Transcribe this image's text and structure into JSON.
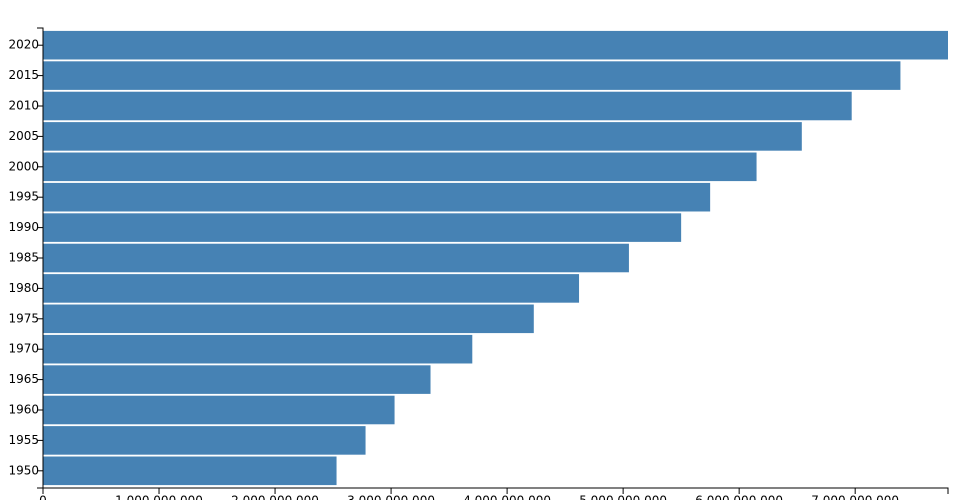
{
  "chart_data": {
    "type": "bar",
    "orientation": "horizontal",
    "categories": [
      "2020",
      "2015",
      "2010",
      "2005",
      "2000",
      "1995",
      "1990",
      "1985",
      "1980",
      "1975",
      "1970",
      "1965",
      "1960",
      "1955",
      "1950"
    ],
    "values": [
      7800000000,
      7390000000,
      6970000000,
      6540000000,
      6150000000,
      5750000000,
      5500000000,
      5050000000,
      4620000000,
      4230000000,
      3700000000,
      3340000000,
      3030000000,
      2780000000,
      2530000000
    ],
    "color": "#4682b4",
    "xlim": [
      0,
      7800000000
    ],
    "xticks": [
      0,
      {
        "value": 1000000000,
        "label": "1,000,000,000"
      },
      {
        "value": 2000000000,
        "label": "2,000,000,000"
      },
      {
        "value": 3000000000,
        "label": "3,000,000,000"
      },
      {
        "value": 4000000000,
        "label": "4,000,000,000"
      },
      {
        "value": 5000000000,
        "label": "5,000,000,000"
      },
      {
        "value": 6000000000,
        "label": "6,000,000,000"
      },
      {
        "value": 7000000000,
        "label": "7,000,000,000"
      }
    ]
  }
}
